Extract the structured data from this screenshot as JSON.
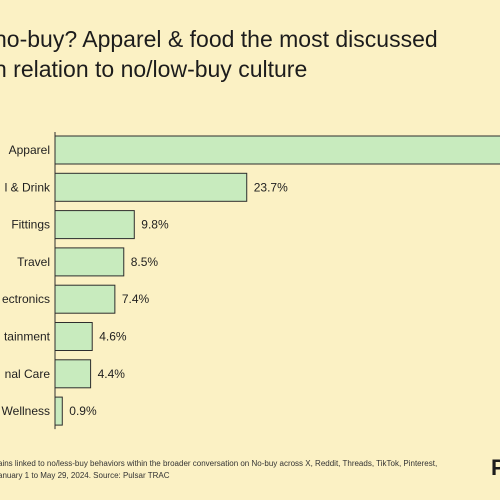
{
  "header": {
    "title_line1": "no-buy? Apparel & food the most discussed",
    "title_line2": "n relation to no/low-buy culture"
  },
  "chart_data": {
    "type": "bar",
    "orientation": "horizontal",
    "title": "",
    "xlabel": "",
    "ylabel": "",
    "categories": [
      "Apparel",
      "l & Drink",
      "Fittings",
      "Travel",
      "ectronics",
      "tainment",
      "nal Care",
      "Wellness"
    ],
    "values": [
      null,
      23.7,
      9.8,
      8.5,
      7.4,
      4.6,
      4.4,
      0.9
    ],
    "value_labels": [
      "",
      "23.7%",
      "9.8%",
      "8.5%",
      "7.4%",
      "4.6%",
      "4.4%",
      "0.9%"
    ],
    "xlim": [
      0,
      100
    ],
    "grid": false,
    "bar_color": "#c8ebbe",
    "bar_edge_color": "#2d2d2d"
  },
  "footer": {
    "line1": "ains linked to no/less-buy behaviors within the broader conversation on No-buy across X, Reddit, Threads, TikTok, Pinterest,",
    "line2": "anuary 1 to May 29, 2024. Source: Pulsar TRAC"
  },
  "brand": {
    "logo_text": "P"
  }
}
